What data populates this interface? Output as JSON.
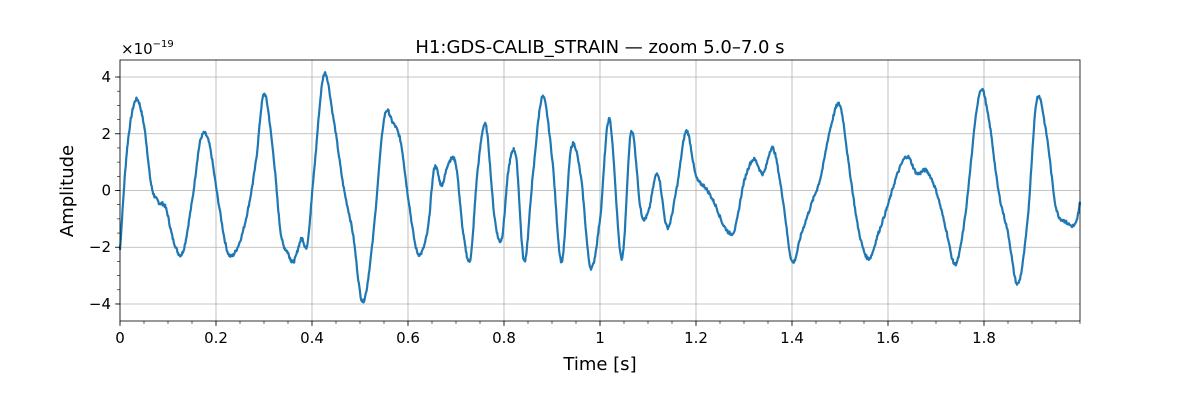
{
  "chart_data": {
    "type": "line",
    "title": "H1:GDS-CALIB_STRAIN — zoom 5.0–7.0 s",
    "xlabel": "Time [s]",
    "ylabel": "Amplitude",
    "y_multiplier_label": "×10",
    "y_multiplier_exponent": "−19",
    "xlim": [
      0,
      2.0
    ],
    "ylim": [
      -4.6,
      4.6
    ],
    "x_ticks": [
      0,
      0.2,
      0.4,
      0.6,
      0.8,
      1.0,
      1.2,
      1.4,
      1.6,
      1.8
    ],
    "x_tick_labels": [
      "0",
      "0.2",
      "0.4",
      "0.6",
      "0.8",
      "1",
      "1.2",
      "1.4",
      "1.6",
      "1.8"
    ],
    "y_ticks": [
      -4,
      -2,
      0,
      2,
      4
    ],
    "y_tick_labels": [
      "−4",
      "−2",
      "0",
      "2",
      "4"
    ],
    "grid": true,
    "series": [
      {
        "color": "#1f77b4",
        "x": [
          0,
          0.015,
          0.033,
          0.05,
          0.065,
          0.08,
          0.095,
          0.112,
          0.13,
          0.15,
          0.168,
          0.185,
          0.205,
          0.225,
          0.245,
          0.265,
          0.283,
          0.3,
          0.318,
          0.335,
          0.35,
          0.362,
          0.378,
          0.39,
          0.405,
          0.425,
          0.445,
          0.465,
          0.485,
          0.505,
          0.525,
          0.55,
          0.568,
          0.585,
          0.6,
          0.62,
          0.64,
          0.655,
          0.67,
          0.685,
          0.7,
          0.715,
          0.73,
          0.745,
          0.762,
          0.78,
          0.795,
          0.81,
          0.825,
          0.842,
          0.86,
          0.88,
          0.9,
          0.92,
          0.94,
          0.96,
          0.98,
          1.0,
          1.02,
          1.045,
          1.065,
          1.085,
          1.1,
          1.12,
          1.14,
          1.16,
          1.18,
          1.2,
          1.22,
          1.24,
          1.26,
          1.28,
          1.3,
          1.32,
          1.34,
          1.36,
          1.38,
          1.4,
          1.42,
          1.44,
          1.46,
          1.48,
          1.5,
          1.52,
          1.54,
          1.56,
          1.58,
          1.6,
          1.62,
          1.64,
          1.66,
          1.68,
          1.7,
          1.72,
          1.74,
          1.76,
          1.79,
          1.81,
          1.83,
          1.85,
          1.87,
          1.89,
          1.91,
          1.93,
          1.95,
          1.97,
          1.99,
          2.0
        ],
        "y": [
          -2.1,
          1.5,
          3.2,
          2.3,
          0.2,
          -0.4,
          -0.6,
          -1.8,
          -2.2,
          -0.4,
          1.8,
          1.7,
          -0.4,
          -2.2,
          -2.0,
          -0.8,
          1.0,
          3.4,
          1.5,
          -1.5,
          -2.2,
          -2.5,
          -1.7,
          -1.9,
          0.8,
          4.1,
          2.5,
          0.2,
          -1.5,
          -3.9,
          -2.0,
          2.5,
          2.4,
          1.7,
          -0.2,
          -2.2,
          -1.5,
          0.8,
          0.2,
          1.0,
          0.9,
          -1.5,
          -2.4,
          0.7,
          2.3,
          -0.9,
          -1.7,
          0.8,
          1.2,
          -2.5,
          0.5,
          3.3,
          1.2,
          -2.5,
          1.5,
          0.5,
          -2.7,
          -1.0,
          2.5,
          -2.4,
          2.1,
          -0.7,
          -0.8,
          0.6,
          -1.3,
          0.1,
          2.1,
          0.5,
          0.1,
          -0.5,
          -1.3,
          -1.4,
          0.3,
          1.1,
          0.6,
          1.5,
          -0.2,
          -2.5,
          -1.5,
          -0.5,
          0.5,
          2.2,
          3.0,
          0.7,
          -1.5,
          -2.4,
          -1.5,
          -0.5,
          0.6,
          1.2,
          0.6,
          0.7,
          0.0,
          -1.3,
          -2.6,
          -1.0,
          3.4,
          2.5,
          0.0,
          -1.5,
          -3.3,
          -1.2,
          3.2,
          2.0,
          -0.6,
          -1.1,
          -1.2,
          -0.4
        ]
      }
    ]
  }
}
